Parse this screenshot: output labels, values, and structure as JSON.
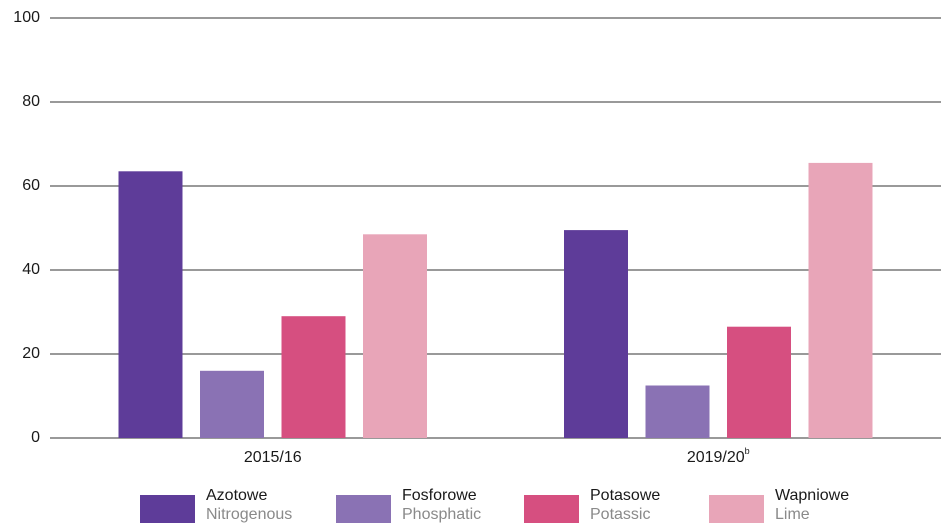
{
  "chart_data": {
    "type": "bar",
    "categories": [
      "2015/16",
      "2019/20"
    ],
    "category_superscripts": [
      null,
      "b"
    ],
    "series": [
      {
        "name": "Azotowe",
        "name_en": "Nitrogenous",
        "color": "#5e3c99",
        "values": [
          63.5,
          49.5
        ]
      },
      {
        "name": "Fosforowe",
        "name_en": "Phosphatic",
        "color": "#8a72b4",
        "values": [
          16,
          12.5
        ]
      },
      {
        "name": "Potasowe",
        "name_en": "Potassic",
        "color": "#d64f80",
        "values": [
          29,
          26.5
        ]
      },
      {
        "name": "Wapniowe",
        "name_en": "Lime",
        "color": "#e8a5b8",
        "values": [
          48.5,
          65.5
        ]
      }
    ],
    "ylim": [
      0,
      100
    ],
    "yticks": [
      0,
      20,
      40,
      60,
      80,
      100
    ],
    "grid": true
  }
}
